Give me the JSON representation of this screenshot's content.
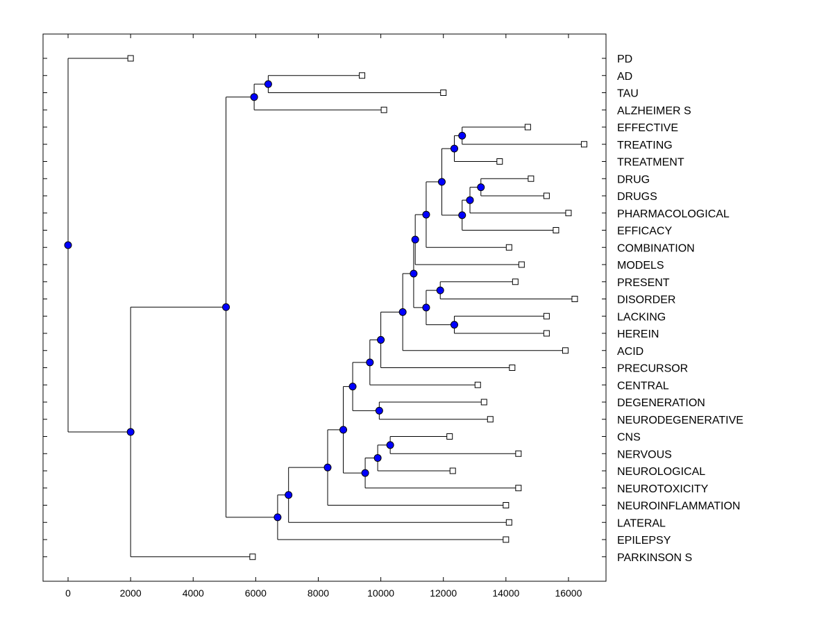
{
  "chart_data": {
    "type": "dendrogram",
    "xlim": [
      -800,
      17200
    ],
    "x_ticks": [
      0,
      2000,
      4000,
      6000,
      8000,
      10000,
      12000,
      14000,
      16000
    ],
    "colors": {
      "node": "#0000ff",
      "line": "#000000",
      "leaf": "#ffffff"
    },
    "leaves": [
      {
        "label": "PD",
        "x": 2000
      },
      {
        "label": "AD",
        "x": 9400
      },
      {
        "label": "TAU",
        "x": 12000
      },
      {
        "label": "ALZHEIMER S",
        "x": 10100
      },
      {
        "label": "EFFECTIVE",
        "x": 14700
      },
      {
        "label": "TREATING",
        "x": 16500
      },
      {
        "label": "TREATMENT",
        "x": 13800
      },
      {
        "label": "DRUG",
        "x": 14800
      },
      {
        "label": "DRUGS",
        "x": 15300
      },
      {
        "label": "PHARMACOLOGICAL",
        "x": 16000
      },
      {
        "label": "EFFICACY",
        "x": 15600
      },
      {
        "label": "COMBINATION",
        "x": 14100
      },
      {
        "label": "MODELS",
        "x": 14500
      },
      {
        "label": "PRESENT",
        "x": 14300
      },
      {
        "label": "DISORDER",
        "x": 16200
      },
      {
        "label": "LACKING",
        "x": 15300
      },
      {
        "label": "HEREIN",
        "x": 15300
      },
      {
        "label": "ACID",
        "x": 15900
      },
      {
        "label": "PRECURSOR",
        "x": 14200
      },
      {
        "label": "CENTRAL",
        "x": 13100
      },
      {
        "label": "DEGENERATION",
        "x": 13300
      },
      {
        "label": "NEURODEGENERATIVE",
        "x": 13500
      },
      {
        "label": "CNS",
        "x": 12200
      },
      {
        "label": "NERVOUS",
        "x": 14400
      },
      {
        "label": "NEUROLOGICAL",
        "x": 12300
      },
      {
        "label": "NEUROTOXICITY",
        "x": 14400
      },
      {
        "label": "NEUROINFLAMMATION",
        "x": 14000
      },
      {
        "label": "LATERAL",
        "x": 14100
      },
      {
        "label": "EPILEPSY",
        "x": 14000
      },
      {
        "label": "PARKINSON S",
        "x": 5900
      }
    ],
    "merges": [
      {
        "x": 6400,
        "children": [
          "L1",
          "L2"
        ]
      },
      {
        "x": 5950,
        "children": [
          "N0",
          "L3"
        ]
      },
      {
        "x": 12600,
        "children": [
          "L4",
          "L5"
        ]
      },
      {
        "x": 12350,
        "children": [
          "N2",
          "L6"
        ]
      },
      {
        "x": 13200,
        "children": [
          "L7",
          "L8"
        ]
      },
      {
        "x": 12850,
        "children": [
          "N4",
          "L9"
        ]
      },
      {
        "x": 12600,
        "children": [
          "N5",
          "L10"
        ]
      },
      {
        "x": 11950,
        "children": [
          "N3",
          "N6"
        ]
      },
      {
        "x": 11450,
        "children": [
          "N7",
          "L11"
        ]
      },
      {
        "x": 11100,
        "children": [
          "N8",
          "L12"
        ]
      },
      {
        "x": 11900,
        "children": [
          "L13",
          "L14"
        ]
      },
      {
        "x": 12350,
        "children": [
          "L15",
          "L16"
        ]
      },
      {
        "x": 11450,
        "children": [
          "N10",
          "N11"
        ]
      },
      {
        "x": 11050,
        "children": [
          "N9",
          "N12"
        ]
      },
      {
        "x": 10700,
        "children": [
          "N13",
          "L17"
        ]
      },
      {
        "x": 10000,
        "children": [
          "N14",
          "L18"
        ]
      },
      {
        "x": 9650,
        "children": [
          "N15",
          "L19"
        ]
      },
      {
        "x": 9950,
        "children": [
          "L20",
          "L21"
        ]
      },
      {
        "x": 9100,
        "children": [
          "N16",
          "N17"
        ]
      },
      {
        "x": 10300,
        "children": [
          "L22",
          "L23"
        ]
      },
      {
        "x": 9900,
        "children": [
          "N19",
          "L24"
        ]
      },
      {
        "x": 9500,
        "children": [
          "N20",
          "L25"
        ]
      },
      {
        "x": 8800,
        "children": [
          "N18",
          "N21"
        ]
      },
      {
        "x": 8300,
        "children": [
          "N22",
          "L26"
        ]
      },
      {
        "x": 7050,
        "children": [
          "N23",
          "L27"
        ]
      },
      {
        "x": 6700,
        "children": [
          "N24",
          "L28"
        ]
      },
      {
        "x": 5050,
        "children": [
          "N1",
          "N25"
        ]
      },
      {
        "x": 2000,
        "children": [
          "N26",
          "L29"
        ]
      },
      {
        "x": 0,
        "children": [
          "L0",
          "N27"
        ]
      }
    ]
  }
}
